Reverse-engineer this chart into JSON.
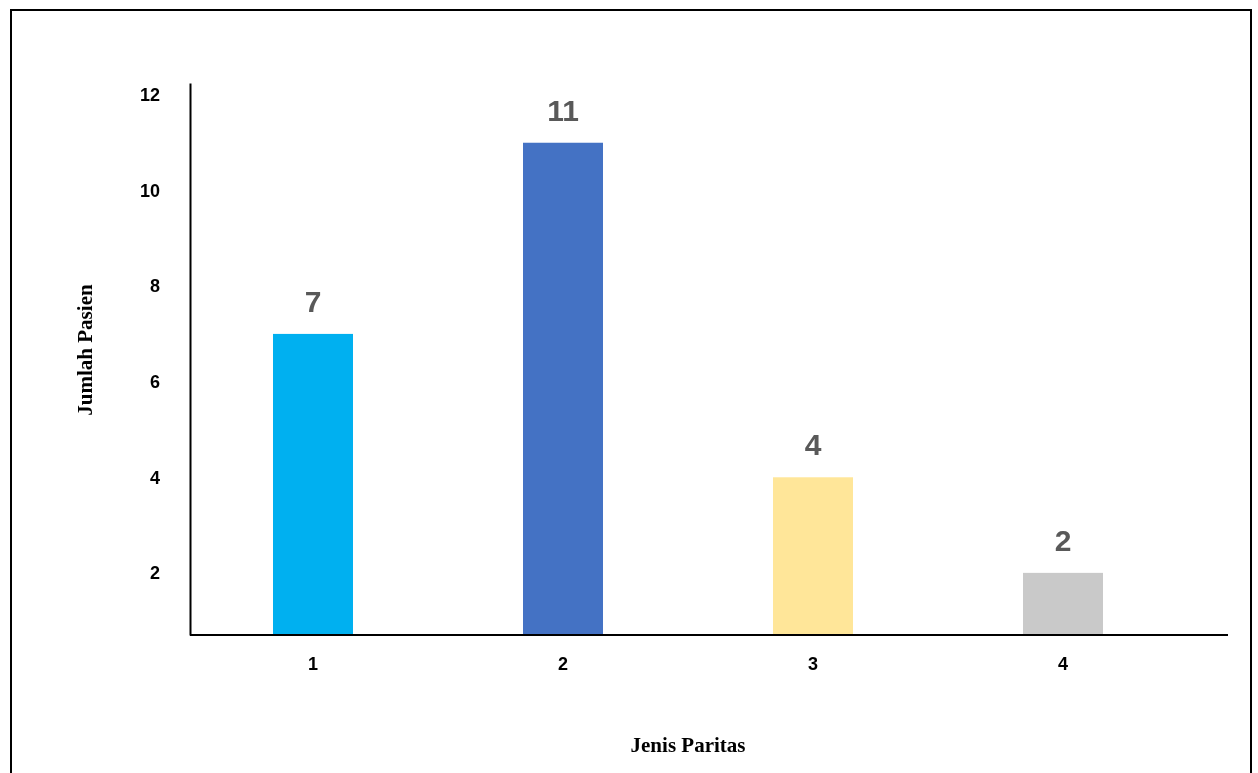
{
  "chart_data": {
    "type": "bar",
    "xlabel": "Jenis Paritas",
    "ylabel": "Jumlah Pasien",
    "categories": [
      "1",
      "2",
      "3",
      "4"
    ],
    "values": [
      7,
      11,
      4,
      2
    ],
    "colors": [
      "#00b0f0",
      "#4472c4",
      "#ffe699",
      "#c9c9c9"
    ],
    "ylim": [
      0.7,
      12.25
    ],
    "yticks": [
      2,
      4,
      6,
      8,
      10,
      12
    ],
    "data_labels": true
  }
}
